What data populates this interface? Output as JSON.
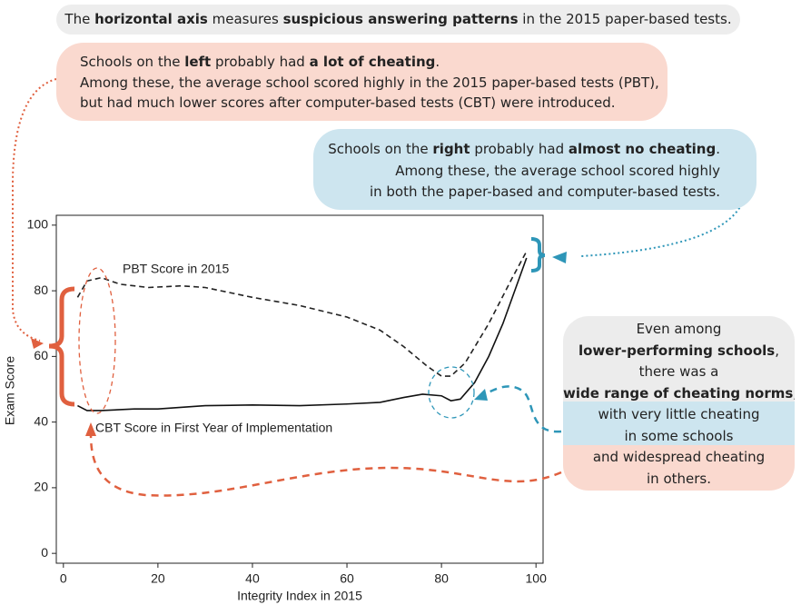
{
  "chart_data": {
    "type": "line",
    "xlabel": "Integrity Index in 2015",
    "ylabel": "Exam Score",
    "xlim": [
      -1.5,
      101.5
    ],
    "xticks": [
      0,
      20,
      40,
      60,
      80,
      100
    ],
    "ylim": [
      -3,
      103
    ],
    "yticks": [
      0,
      20,
      40,
      60,
      80,
      100
    ],
    "series": [
      {
        "name": "PBT Score in 2015",
        "color": "#222222",
        "style": "dashed",
        "x": [
          3,
          5,
          8,
          12,
          18,
          25,
          30,
          40,
          50,
          60,
          67,
          72,
          77,
          80,
          82,
          85,
          90,
          95,
          98
        ],
        "values": [
          78,
          83,
          84,
          82,
          81,
          81.5,
          81,
          78,
          75.5,
          72,
          68,
          63,
          57,
          54,
          54,
          58,
          70,
          84,
          92
        ]
      },
      {
        "name": "CBT Score in First Year of Implementation",
        "color": "#111111",
        "style": "solid",
        "x": [
          3,
          5,
          8,
          15,
          20,
          30,
          40,
          50,
          60,
          67,
          72,
          76,
          80,
          82,
          84,
          87,
          90,
          93,
          98
        ],
        "values": [
          45,
          43.5,
          43.5,
          44,
          44,
          45,
          45.2,
          45,
          45.5,
          46,
          47.5,
          48.5,
          48,
          46.5,
          47,
          52,
          60,
          70,
          90
        ]
      }
    ]
  },
  "annotations": [
    {
      "lines": [
        [
          {
            "text": "The ",
            "bold": false
          },
          {
            "text": "horizontal axis",
            "bold": true
          },
          {
            "text": " measures ",
            "bold": false
          },
          {
            "text": "suspicious answering patterns",
            "bold": true
          },
          {
            "text": " in the 2015 paper-based tests.",
            "bold": false
          }
        ]
      ]
    },
    {
      "lines": [
        [
          {
            "text": "Schools on the ",
            "bold": false
          },
          {
            "text": "left",
            "bold": true
          },
          {
            "text": " probably had ",
            "bold": false
          },
          {
            "text": "a lot of cheating",
            "bold": true
          },
          {
            "text": ".",
            "bold": false
          }
        ],
        [
          {
            "text": "Among these, the average school scored highly in the 2015 paper-based tests (PBT),",
            "bold": false
          }
        ],
        [
          {
            "text": "but had much lower scores after computer-based tests (CBT) were introduced.",
            "bold": false
          }
        ]
      ]
    },
    {
      "lines": [
        [
          {
            "text": "Schools on the ",
            "bold": false
          },
          {
            "text": "right",
            "bold": true
          },
          {
            "text": " probably had ",
            "bold": false
          },
          {
            "text": "almost no cheating",
            "bold": true
          },
          {
            "text": ".",
            "bold": false
          }
        ],
        [
          {
            "text": "Among these, the average school scored highly",
            "bold": false
          }
        ],
        [
          {
            "text": "in both the paper-based and computer-based tests.",
            "bold": false
          }
        ]
      ]
    },
    {
      "lines": [
        [
          {
            "text": "Even among",
            "bold": false
          }
        ],
        [
          {
            "text": "lower-performing schools",
            "bold": true
          },
          {
            "text": ",",
            "bold": false
          }
        ],
        [
          {
            "text": "there was a",
            "bold": false
          }
        ],
        [
          {
            "text": "wide range of cheating norms",
            "bold": true
          },
          {
            "text": ",",
            "bold": false
          }
        ],
        [
          {
            "text": "with very little cheating",
            "bold": false
          }
        ],
        [
          {
            "text": "in some schools",
            "bold": false
          }
        ],
        [
          {
            "text": "and widespread cheating",
            "bold": false
          }
        ],
        [
          {
            "text": "in others.",
            "bold": false
          }
        ]
      ]
    }
  ]
}
